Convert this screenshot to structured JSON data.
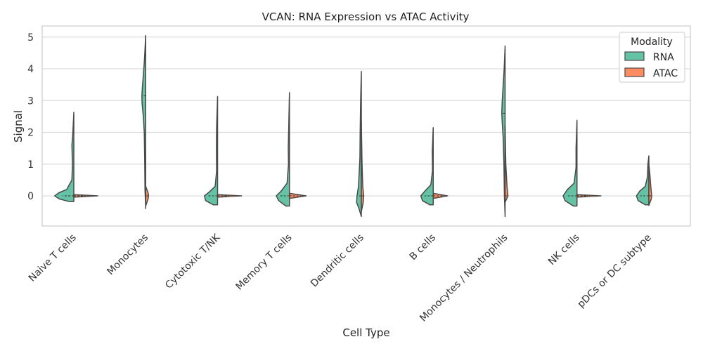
{
  "chart_data": {
    "type": "violin",
    "title": "VCAN: RNA Expression vs ATAC Activity",
    "xlabel": "Cell Type",
    "ylabel": "Signal",
    "ylim": [
      -0.95,
      5.35
    ],
    "yticks": [
      0,
      1,
      2,
      3,
      4,
      5
    ],
    "grid": true,
    "legend": {
      "title": "Modality",
      "placement": "top-right",
      "entries": [
        {
          "name": "RNA",
          "color": "#66c2a5"
        },
        {
          "name": "ATAC",
          "color": "#fc8d62"
        }
      ]
    },
    "categories": [
      "Naive T cells",
      "Monocytes",
      "Cytotoxic T/NK",
      "Memory T cells",
      "Dendritic cells",
      "B cells",
      "Monocytes / Neutrophils",
      "NK cells",
      "pDCs or DC subtype"
    ],
    "series": [
      {
        "name": "RNA",
        "side": "left",
        "color": "#66c2a5",
        "violins": [
          {
            "min": -0.18,
            "max": 2.63,
            "median": 0.0,
            "shape": [
              [
                -0.18,
                0.18
              ],
              [
                -0.1,
                0.6
              ],
              [
                0.0,
                0.8
              ],
              [
                0.1,
                0.62
              ],
              [
                0.2,
                0.3
              ],
              [
                0.5,
                0.08
              ],
              [
                1.0,
                0.06
              ],
              [
                1.6,
                0.08
              ],
              [
                2.0,
                0.04
              ],
              [
                2.63,
                0
              ]
            ]
          },
          {
            "min": -0.4,
            "max": 5.05,
            "median": 3.15,
            "shape": [
              [
                -0.4,
                0
              ],
              [
                0.2,
                0.03
              ],
              [
                1.0,
                0.04
              ],
              [
                2.0,
                0.06
              ],
              [
                2.5,
                0.1
              ],
              [
                2.9,
                0.15
              ],
              [
                3.15,
                0.16
              ],
              [
                3.4,
                0.14
              ],
              [
                3.8,
                0.1
              ],
              [
                4.2,
                0.06
              ],
              [
                4.6,
                0.03
              ],
              [
                5.05,
                0
              ]
            ]
          },
          {
            "min": -0.28,
            "max": 3.13,
            "median": 0.0,
            "shape": [
              [
                -0.28,
                0.18
              ],
              [
                -0.15,
                0.5
              ],
              [
                0.0,
                0.55
              ],
              [
                0.12,
                0.35
              ],
              [
                0.3,
                0.1
              ],
              [
                0.8,
                0.04
              ],
              [
                1.5,
                0.05
              ],
              [
                2.2,
                0.04
              ],
              [
                3.13,
                0
              ]
            ]
          },
          {
            "min": -0.32,
            "max": 3.25,
            "median": 0.0,
            "shape": [
              [
                -0.32,
                0.15
              ],
              [
                -0.15,
                0.45
              ],
              [
                0.0,
                0.55
              ],
              [
                0.15,
                0.35
              ],
              [
                0.4,
                0.1
              ],
              [
                1.0,
                0.04
              ],
              [
                1.5,
                0.05
              ],
              [
                2.2,
                0.03
              ],
              [
                3.25,
                0
              ]
            ]
          },
          {
            "min": -0.65,
            "max": 3.92,
            "median": 0.0,
            "shape": [
              [
                -0.65,
                0
              ],
              [
                -0.4,
                0.1
              ],
              [
                -0.2,
                0.2
              ],
              [
                0.0,
                0.18
              ],
              [
                0.3,
                0.12
              ],
              [
                0.6,
                0.1
              ],
              [
                1.2,
                0.06
              ],
              [
                2.0,
                0.05
              ],
              [
                3.0,
                0.03
              ],
              [
                3.92,
                0
              ]
            ]
          },
          {
            "min": -0.28,
            "max": 2.15,
            "median": 0.0,
            "shape": [
              [
                -0.28,
                0.15
              ],
              [
                -0.15,
                0.45
              ],
              [
                0.0,
                0.52
              ],
              [
                0.15,
                0.35
              ],
              [
                0.35,
                0.1
              ],
              [
                0.8,
                0.03
              ],
              [
                1.4,
                0.04
              ],
              [
                2.15,
                0
              ]
            ]
          },
          {
            "min": -0.65,
            "max": 4.72,
            "median": 2.6,
            "shape": [
              [
                -0.65,
                0
              ],
              [
                0.0,
                0.03
              ],
              [
                1.0,
                0.05
              ],
              [
                1.8,
                0.08
              ],
              [
                2.3,
                0.12
              ],
              [
                2.6,
                0.14
              ],
              [
                3.0,
                0.12
              ],
              [
                3.5,
                0.08
              ],
              [
                4.0,
                0.04
              ],
              [
                4.72,
                0
              ]
            ]
          },
          {
            "min": -0.32,
            "max": 2.38,
            "median": 0.0,
            "shape": [
              [
                -0.32,
                0.15
              ],
              [
                -0.15,
                0.5
              ],
              [
                0.0,
                0.58
              ],
              [
                0.2,
                0.4
              ],
              [
                0.4,
                0.12
              ],
              [
                0.9,
                0.04
              ],
              [
                1.5,
                0.04
              ],
              [
                2.38,
                0
              ]
            ]
          },
          {
            "min": -0.28,
            "max": 1.26,
            "median": 0.0,
            "shape": [
              [
                -0.28,
                0.15
              ],
              [
                -0.15,
                0.45
              ],
              [
                0.0,
                0.52
              ],
              [
                0.15,
                0.38
              ],
              [
                0.3,
                0.15
              ],
              [
                0.6,
                0.06
              ],
              [
                1.0,
                0.04
              ],
              [
                1.26,
                0
              ]
            ]
          }
        ]
      },
      {
        "name": "ATAC",
        "side": "right",
        "color": "#fc8d62",
        "violins": [
          {
            "min": -0.04,
            "max": 0.04,
            "median": 0.0,
            "shape": [
              [
                -0.04,
                0
              ],
              [
                0.0,
                1.0
              ],
              [
                0.04,
                0
              ]
            ]
          },
          {
            "min": -0.32,
            "max": 0.3,
            "median": 0.0,
            "shape": [
              [
                -0.32,
                0
              ],
              [
                -0.1,
                0.1
              ],
              [
                0.0,
                0.12
              ],
              [
                0.1,
                0.1
              ],
              [
                0.3,
                0
              ]
            ]
          },
          {
            "min": -0.04,
            "max": 0.04,
            "median": 0.0,
            "shape": [
              [
                -0.04,
                0
              ],
              [
                0.0,
                1.0
              ],
              [
                0.04,
                0
              ]
            ]
          },
          {
            "min": -0.08,
            "max": 0.08,
            "median": 0.0,
            "shape": [
              [
                -0.08,
                0
              ],
              [
                0.0,
                0.7
              ],
              [
                0.08,
                0
              ]
            ]
          },
          {
            "min": -0.5,
            "max": 2.35,
            "median": 0.0,
            "shape": [
              [
                -0.5,
                0
              ],
              [
                -0.2,
                0.08
              ],
              [
                0.0,
                0.1
              ],
              [
                0.3,
                0.06
              ],
              [
                1.0,
                0.03
              ],
              [
                2.35,
                0
              ]
            ]
          },
          {
            "min": -0.08,
            "max": 0.08,
            "median": 0.0,
            "shape": [
              [
                -0.08,
                0
              ],
              [
                0.0,
                0.6
              ],
              [
                0.08,
                0
              ]
            ]
          },
          {
            "min": -0.2,
            "max": 2.2,
            "median": 0.0,
            "shape": [
              [
                -0.2,
                0
              ],
              [
                0.0,
                0.12
              ],
              [
                0.3,
                0.08
              ],
              [
                1.0,
                0.03
              ],
              [
                2.2,
                0
              ]
            ]
          },
          {
            "min": -0.04,
            "max": 0.04,
            "median": 0.0,
            "shape": [
              [
                -0.04,
                0
              ],
              [
                0.0,
                1.0
              ],
              [
                0.04,
                0
              ]
            ]
          },
          {
            "min": -0.3,
            "max": 1.0,
            "median": 0.0,
            "shape": [
              [
                -0.3,
                0
              ],
              [
                -0.1,
                0.1
              ],
              [
                0.0,
                0.12
              ],
              [
                0.3,
                0.08
              ],
              [
                0.7,
                0.04
              ],
              [
                1.0,
                0
              ]
            ]
          }
        ]
      }
    ]
  }
}
